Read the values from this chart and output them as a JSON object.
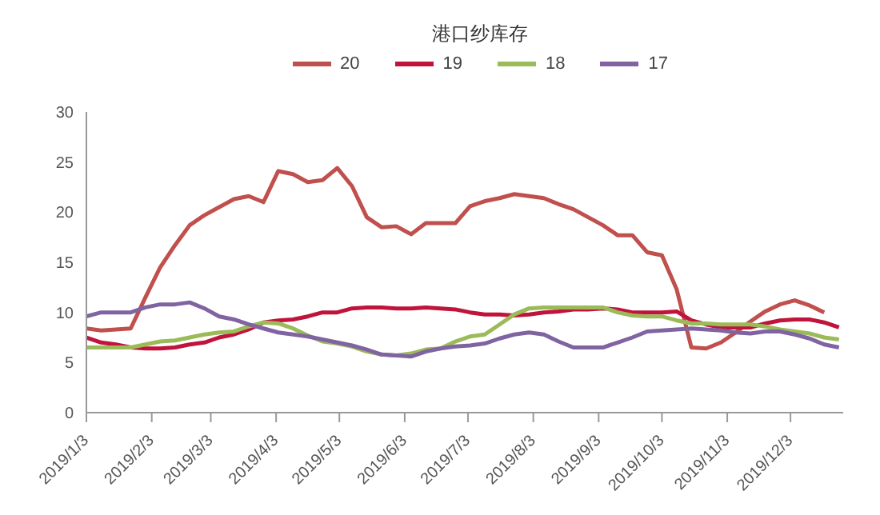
{
  "chart_data": {
    "type": "line",
    "title": "港口纱库存",
    "x": [
      "2019-01-03",
      "2019-01-10",
      "2019-01-17",
      "2019-01-24",
      "2019-01-31",
      "2019-02-07",
      "2019-02-14",
      "2019-02-21",
      "2019-02-28",
      "2019-03-07",
      "2019-03-14",
      "2019-03-21",
      "2019-03-28",
      "2019-04-04",
      "2019-04-11",
      "2019-04-18",
      "2019-04-25",
      "2019-05-02",
      "2019-05-09",
      "2019-05-16",
      "2019-05-23",
      "2019-05-30",
      "2019-06-06",
      "2019-06-13",
      "2019-06-20",
      "2019-06-27",
      "2019-07-04",
      "2019-07-11",
      "2019-07-18",
      "2019-07-25",
      "2019-08-01",
      "2019-08-08",
      "2019-08-15",
      "2019-08-22",
      "2019-08-29",
      "2019-09-05",
      "2019-09-12",
      "2019-09-19",
      "2019-09-26",
      "2019-10-03",
      "2019-10-10",
      "2019-10-17",
      "2019-10-24",
      "2019-10-31",
      "2019-11-07",
      "2019-11-14",
      "2019-11-21",
      "2019-11-28",
      "2019-12-05",
      "2019-12-12",
      "2019-12-19",
      "2019-12-26"
    ],
    "series": [
      {
        "name": "20",
        "color": "#c0504d",
        "values": [
          8.4,
          8.2,
          8.3,
          8.4,
          11.5,
          14.5,
          16.7,
          18.7,
          19.7,
          20.5,
          21.3,
          21.6,
          21.0,
          24.1,
          23.8,
          23.0,
          23.2,
          24.4,
          22.6,
          19.5,
          18.5,
          18.6,
          17.8,
          18.9,
          18.9,
          18.9,
          20.6,
          21.1,
          21.4,
          21.8,
          21.6,
          21.4,
          20.8,
          20.3,
          19.5,
          18.7,
          17.7,
          17.7,
          16.0,
          15.7,
          12.3,
          6.5,
          6.4,
          7.0,
          8.0,
          9.1,
          10.1,
          10.8,
          11.2,
          10.7,
          10.0,
          null
        ]
      },
      {
        "name": "19",
        "color": "#c0143c",
        "values": [
          7.5,
          7.0,
          6.8,
          6.5,
          6.4,
          6.4,
          6.5,
          6.8,
          7.0,
          7.5,
          7.8,
          8.3,
          9.0,
          9.2,
          9.3,
          9.6,
          10.0,
          10.0,
          10.4,
          10.5,
          10.5,
          10.4,
          10.4,
          10.5,
          10.4,
          10.3,
          10.0,
          9.8,
          9.8,
          9.7,
          9.8,
          10.0,
          10.1,
          10.3,
          10.3,
          10.4,
          10.3,
          10.0,
          10.0,
          10.0,
          10.1,
          9.2,
          8.8,
          8.5,
          8.5,
          8.5,
          8.9,
          9.2,
          9.3,
          9.3,
          9.0,
          8.5
        ]
      },
      {
        "name": "18",
        "color": "#9bbb59",
        "values": [
          6.5,
          6.5,
          6.5,
          6.5,
          6.8,
          7.1,
          7.2,
          7.5,
          7.8,
          8.0,
          8.1,
          8.6,
          9.0,
          8.9,
          8.4,
          7.7,
          7.1,
          6.9,
          6.6,
          6.1,
          5.8,
          5.7,
          5.9,
          6.3,
          6.4,
          7.1,
          7.6,
          7.8,
          8.8,
          9.8,
          10.4,
          10.5,
          10.5,
          10.5,
          10.5,
          10.5,
          10.0,
          9.7,
          9.6,
          9.6,
          9.2,
          8.9,
          8.9,
          8.8,
          8.8,
          8.8,
          8.6,
          8.3,
          8.1,
          7.9,
          7.5,
          7.3
        ]
      },
      {
        "name": "17",
        "color": "#8064a2",
        "values": [
          9.6,
          10.0,
          10.0,
          10.0,
          10.5,
          10.8,
          10.8,
          11.0,
          10.4,
          9.6,
          9.3,
          8.8,
          8.4,
          8.0,
          7.8,
          7.6,
          7.3,
          7.0,
          6.7,
          6.3,
          5.8,
          5.7,
          5.6,
          6.1,
          6.4,
          6.6,
          6.7,
          6.9,
          7.4,
          7.8,
          8.0,
          7.8,
          7.1,
          6.5,
          6.5,
          6.5,
          7.0,
          7.5,
          8.1,
          8.2,
          8.3,
          8.4,
          8.3,
          8.2,
          8.0,
          7.9,
          8.1,
          8.1,
          7.8,
          7.4,
          6.8,
          6.5
        ]
      }
    ],
    "xlim": [
      "2019-01-03",
      "2019-12-28"
    ],
    "xticks": [
      {
        "value": "2019-01-03",
        "label": "2019/1/3"
      },
      {
        "value": "2019-02-03",
        "label": "2019/2/3"
      },
      {
        "value": "2019-03-03",
        "label": "2019/3/3"
      },
      {
        "value": "2019-04-03",
        "label": "2019/4/3"
      },
      {
        "value": "2019-05-03",
        "label": "2019/5/3"
      },
      {
        "value": "2019-06-03",
        "label": "2019/6/3"
      },
      {
        "value": "2019-07-03",
        "label": "2019/7/3"
      },
      {
        "value": "2019-08-03",
        "label": "2019/8/3"
      },
      {
        "value": "2019-09-03",
        "label": "2019/9/3"
      },
      {
        "value": "2019-10-03",
        "label": "2019/10/3"
      },
      {
        "value": "2019-11-03",
        "label": "2019/11/3"
      },
      {
        "value": "2019-12-03",
        "label": "2019/12/3"
      }
    ],
    "ylim": [
      0,
      30
    ],
    "yticks": [
      0,
      5,
      10,
      15,
      20,
      25,
      30
    ],
    "grid": false,
    "legend": "top",
    "marker": "none",
    "line_style": "solid"
  }
}
